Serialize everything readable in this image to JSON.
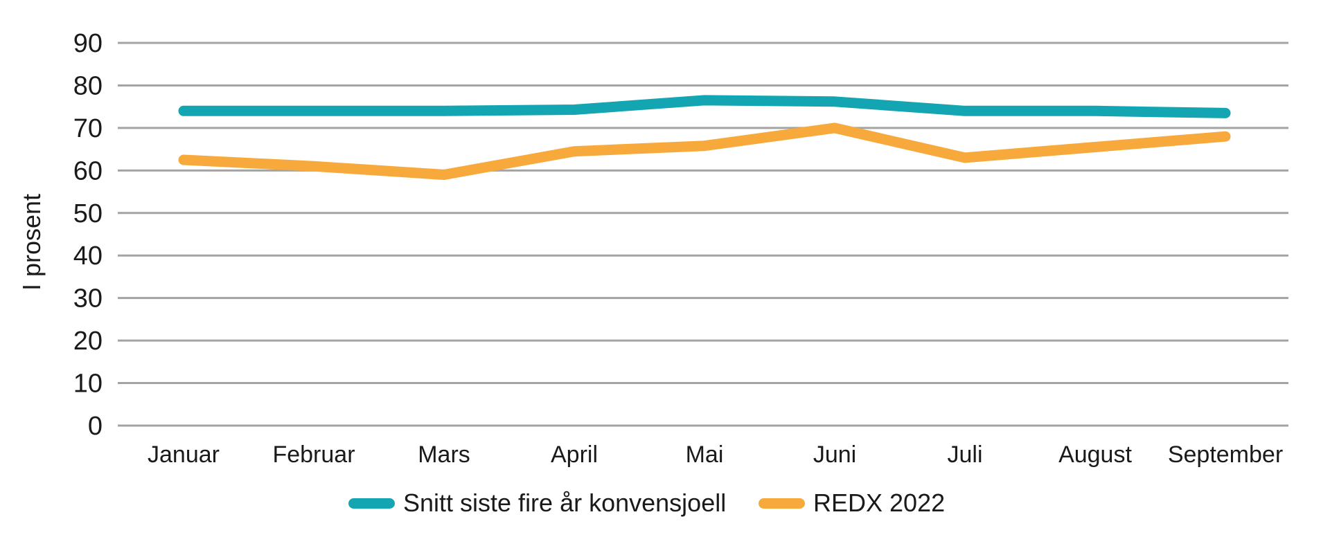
{
  "chart_data": {
    "type": "line",
    "title": "",
    "xlabel": "",
    "ylabel": "I prosent",
    "categories": [
      "Januar",
      "Februar",
      "Mars",
      "April",
      "Mai",
      "Juni",
      "Juli",
      "August",
      "September"
    ],
    "series": [
      {
        "name": "Snitt siste fire år konvensjoell",
        "color": "#14A5B3",
        "values": [
          74,
          74,
          74,
          74.3,
          76.5,
          76.2,
          74,
          74,
          73.5
        ]
      },
      {
        "name": "REDX 2022",
        "color": "#F8A93C",
        "values": [
          62.5,
          61,
          59,
          64.5,
          65.8,
          70,
          63,
          65.5,
          68
        ]
      }
    ],
    "ylim": [
      0,
      90
    ],
    "yticks": [
      0,
      10,
      20,
      30,
      40,
      50,
      60,
      70,
      80,
      90
    ],
    "grid": "horizontal",
    "gridline_color": "#A3A3A3",
    "text_color": "#1A1A1A",
    "legend_position": "bottom"
  }
}
